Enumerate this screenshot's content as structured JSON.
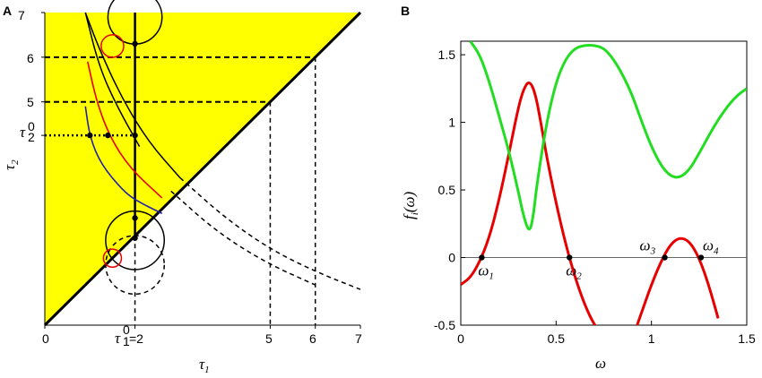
{
  "chart_data": [
    {
      "panel": "A",
      "type": "line",
      "xlabel": "τ1",
      "ylabel": "τ2",
      "xlim": [
        0,
        7
      ],
      "ylim": [
        0,
        7
      ],
      "x_ticks": [
        "0",
        "τ1⁰=2",
        "5",
        "6",
        "7"
      ],
      "x_tick_values": [
        0,
        2,
        5,
        6,
        7
      ],
      "y_ticks": [
        "7",
        "6",
        "5",
        "τ2⁰"
      ],
      "y_tick_values": [
        7,
        6,
        5,
        4.25
      ],
      "shaded_region": {
        "description_color": "#ffff00",
        "region": "τ2 > τ1"
      },
      "diagonal": {
        "from": [
          0,
          0
        ],
        "to": [
          7,
          7
        ]
      },
      "vertical_line_x": 2,
      "dashed_guides": [
        {
          "tau2": 6,
          "tau1": 6
        },
        {
          "tau2": 5,
          "tau1": 5
        }
      ],
      "dotted_guide_tau2": 4.25,
      "curves": [
        {
          "name": "black outer",
          "color": "#000000",
          "points": [
            [
              0.9,
              7
            ],
            [
              1.2,
              6.2
            ],
            [
              1.7,
              5.1
            ],
            [
              2.3,
              4.1
            ],
            [
              3.0,
              3.3
            ],
            [
              4.0,
              2.4
            ],
            [
              5.0,
              1.7
            ],
            [
              6.0,
              1.2
            ],
            [
              7.0,
              0.8
            ]
          ],
          "dashed_from_x": 3.0
        },
        {
          "name": "black inner",
          "color": "#000000",
          "points": [
            [
              0.9,
              7
            ],
            [
              1.2,
              5.8
            ],
            [
              1.6,
              4.9
            ],
            [
              2.1,
              4.0
            ],
            [
              2.8,
              3.0
            ],
            [
              3.8,
              2.1
            ],
            [
              4.9,
              1.4
            ],
            [
              6.0,
              0.9
            ]
          ],
          "dashed_from_x": 2.5
        },
        {
          "name": "red",
          "color": "#e60000",
          "points": [
            [
              0.95,
              5.9
            ],
            [
              1.15,
              5.0
            ],
            [
              1.45,
              4.2
            ],
            [
              1.9,
              3.5
            ],
            [
              2.6,
              2.85
            ]
          ]
        },
        {
          "name": "blue",
          "color": "#2222aa",
          "points": [
            [
              0.9,
              4.9
            ],
            [
              1.0,
              4.2
            ],
            [
              1.25,
              3.6
            ],
            [
              1.7,
              3.05
            ],
            [
              2.0,
              2.8
            ],
            [
              2.6,
              2.5
            ]
          ]
        },
        {
          "name": "black circle top",
          "color": "#000000",
          "center": [
            2.0,
            6.9
          ],
          "radius": 0.6
        },
        {
          "name": "black circle bottom",
          "color": "#000000",
          "center": [
            2.0,
            1.9
          ],
          "radius": 0.65
        },
        {
          "name": "dashed circle bottom",
          "color": "#000000",
          "center": [
            2.0,
            1.35
          ],
          "radius": 0.65
        },
        {
          "name": "red loop top",
          "color": "#e60000",
          "center": [
            1.5,
            6.25
          ],
          "radius": 0.25
        },
        {
          "name": "red loop bottom",
          "color": "#e60000",
          "center": [
            1.5,
            1.5
          ],
          "radius": 0.2
        }
      ],
      "marked_points": [
        [
          2.0,
          6.3
        ],
        [
          1.0,
          4.25
        ],
        [
          1.4,
          4.25
        ],
        [
          2.0,
          4.25
        ],
        [
          2.0,
          2.4
        ],
        [
          2.0,
          1.95
        ]
      ]
    },
    {
      "panel": "B",
      "type": "line",
      "xlabel": "ω",
      "ylabel": "fi(ω)",
      "xlim": [
        0,
        1.5
      ],
      "ylim": [
        -0.5,
        1.6
      ],
      "x_ticks": [
        "0",
        "0.5",
        "1",
        "1.5"
      ],
      "x_tick_values": [
        0,
        0.5,
        1,
        1.5
      ],
      "y_ticks": [
        "1.5",
        "1",
        "0.5",
        "0",
        "-0.5"
      ],
      "y_tick_values": [
        1.5,
        1,
        0.5,
        0,
        -0.5
      ],
      "zero_line": 0,
      "series": [
        {
          "color": "#e60000",
          "x": [
            0,
            0.05,
            0.1,
            0.15,
            0.2,
            0.25,
            0.3,
            0.33,
            0.36,
            0.39,
            0.42,
            0.45,
            0.5,
            0.55,
            0.6,
            0.65,
            0.7,
            0.8,
            0.9,
            0.95,
            1.0,
            1.05,
            1.1,
            1.15,
            1.2,
            1.25,
            1.3,
            1.35
          ],
          "y": [
            -0.2,
            -0.15,
            -0.03,
            0.15,
            0.42,
            0.75,
            1.1,
            1.25,
            1.31,
            1.22,
            1.0,
            0.75,
            0.4,
            0.1,
            -0.15,
            -0.35,
            -0.5,
            -0.7,
            -0.6,
            -0.4,
            -0.2,
            -0.03,
            0.1,
            0.15,
            0.12,
            0.0,
            -0.2,
            -0.45
          ]
        },
        {
          "color": "#22dd22",
          "x": [
            0.05,
            0.1,
            0.15,
            0.2,
            0.25,
            0.3,
            0.33,
            0.36,
            0.38,
            0.4,
            0.45,
            0.5,
            0.55,
            0.6,
            0.65,
            0.7,
            0.75,
            0.8,
            0.85,
            0.9,
            0.95,
            1.0,
            1.05,
            1.1,
            1.15,
            1.2,
            1.25,
            1.3,
            1.35,
            1.4,
            1.45,
            1.5
          ],
          "y": [
            1.6,
            1.5,
            1.3,
            1.05,
            0.8,
            0.5,
            0.3,
            0.18,
            0.3,
            0.55,
            1.0,
            1.3,
            1.47,
            1.55,
            1.57,
            1.57,
            1.55,
            1.47,
            1.35,
            1.2,
            1.0,
            0.82,
            0.68,
            0.6,
            0.59,
            0.65,
            0.77,
            0.9,
            1.02,
            1.12,
            1.2,
            1.25
          ]
        }
      ],
      "zeros": [
        {
          "label": "ω1",
          "x": 0.11
        },
        {
          "label": "ω2",
          "x": 0.57
        },
        {
          "label": "ω3",
          "x": 1.07
        },
        {
          "label": "ω4",
          "x": 1.26
        }
      ]
    }
  ],
  "labels": {
    "panel_a": "A",
    "panel_b": "B",
    "a_x0": "0",
    "a_x2": "=2",
    "a_x5": "5",
    "a_x6": "6",
    "a_x7": "7",
    "a_y7": "7",
    "a_y6": "6",
    "a_y5": "5",
    "a_xlabel": "τ",
    "a_xlabel_sub": "1",
    "a_ylabel": "τ",
    "a_ylabel_sub": "2",
    "b_xlabel": "ω",
    "b_ylabel": "f",
    "b_ylabel_rest": "(ω)"
  }
}
